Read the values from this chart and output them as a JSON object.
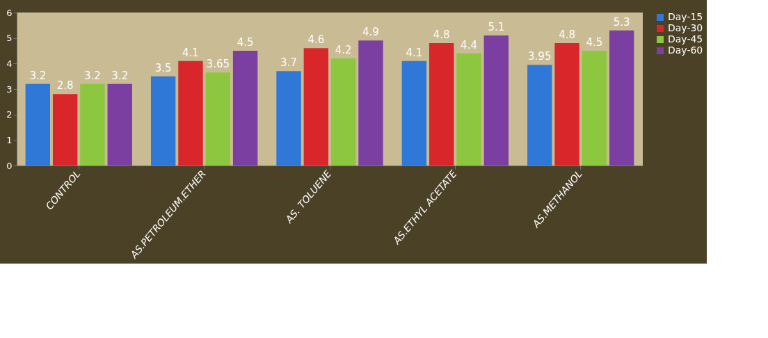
{
  "chart_data": {
    "type": "bar",
    "categories": [
      "CONTROL",
      "AS.PETROLEUM.ETHER",
      "AS. TOLUENE",
      "AS.ETHYL ACETATE",
      "AS.METHANOL"
    ],
    "series": [
      {
        "name": "Day-15",
        "color": "#2f78d8",
        "values": [
          3.2,
          3.5,
          3.7,
          4.1,
          3.95
        ]
      },
      {
        "name": "Day-30",
        "color": "#d8262b",
        "values": [
          2.8,
          4.1,
          4.6,
          4.8,
          4.8
        ]
      },
      {
        "name": "Day-45",
        "color": "#8dc63f",
        "values": [
          3.2,
          3.65,
          4.2,
          4.4,
          4.5
        ]
      },
      {
        "name": "Day-60",
        "color": "#7b3fa2",
        "values": [
          3.2,
          4.5,
          4.9,
          5.1,
          5.3
        ]
      }
    ],
    "ylim": [
      0,
      6
    ],
    "yticks": [
      0,
      1,
      2,
      3,
      4,
      5,
      6
    ],
    "data_labels": true,
    "legend": "right",
    "grid": false
  }
}
